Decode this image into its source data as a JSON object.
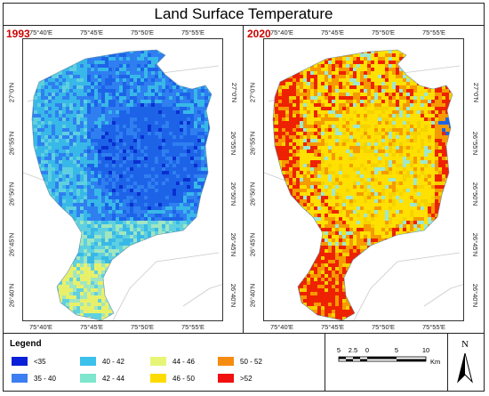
{
  "title": "Land Surface Temperature",
  "panels": [
    {
      "year": "1993",
      "top_ticks": [
        "75°40'E",
        "75°45'E",
        "75°50'E",
        "75°55'E"
      ],
      "bottom_ticks": [
        "75°40'E",
        "75°45'E",
        "75°50'E",
        "75°55'E"
      ],
      "left_ticks": [
        "27°0'N",
        "26°55'N",
        "26°50'N",
        "26°45'N",
        "26°40'N"
      ],
      "right_ticks": [
        "27°0'N",
        "26°55'N",
        "26°50'N",
        "26°45'N",
        "26°40'N"
      ],
      "palette": [
        "#1d63e8",
        "#2f7ff0",
        "#38b8e8",
        "#5fd0e0",
        "#a0e6c0",
        "#e8f06a",
        "#0a2fd0"
      ]
    },
    {
      "year": "2020",
      "top_ticks": [
        "75°40'E",
        "75°45'E",
        "75°50'E",
        "75°55'E"
      ],
      "bottom_ticks": [
        "75°40'E",
        "75°45'E",
        "75°50'E",
        "75°55'E"
      ],
      "left_ticks": [
        "27°0'N",
        "26°55'N",
        "26°50'N",
        "26°45'N",
        "26°40'N"
      ],
      "right_ticks": [
        "27°0'N",
        "26°55'N",
        "26°50'N",
        "26°45'N",
        "26°40'N"
      ],
      "palette": [
        "#f5d200",
        "#ffe000",
        "#f59a00",
        "#ee2200",
        "#9ee8d0",
        "#1d63e8"
      ]
    }
  ],
  "legend": {
    "title": "Legend",
    "items": [
      {
        "label": "<35",
        "color": "#0a1fd8"
      },
      {
        "label": "35 - 40",
        "color": "#3d7ff2"
      },
      {
        "label": "40 - 42",
        "color": "#3cc0ec"
      },
      {
        "label": "42 - 44",
        "color": "#7ee6cc"
      },
      {
        "label": "44 - 46",
        "color": "#e6f576"
      },
      {
        "label": "46 - 50",
        "color": "#ffdc00"
      },
      {
        "label": "50 - 52",
        "color": "#f58c10"
      },
      {
        "label": ">52",
        "color": "#f01010"
      }
    ]
  },
  "scalebar": {
    "labels": [
      "5",
      "2.5",
      "0",
      "5",
      "10"
    ],
    "unit": "Km"
  },
  "north_arrow": {
    "letter": "N",
    "icon": "north-arrow-icon"
  }
}
